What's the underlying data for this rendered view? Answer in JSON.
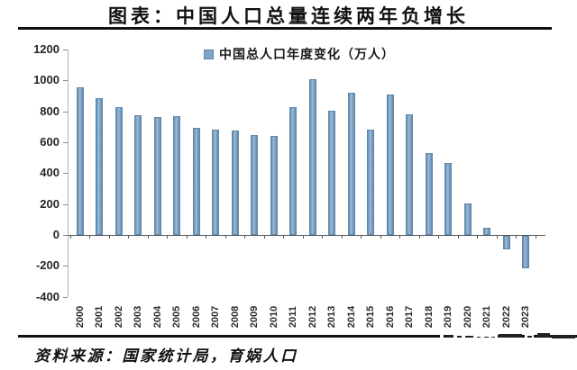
{
  "title": "图表：中国人口总量连续两年负增长",
  "legend": {
    "label": "中国总人口年度变化（万人）"
  },
  "source": "资料来源：国家统计局，育娲人口",
  "colors": {
    "bar_fill": "#7EA4C6",
    "bar_edge": "#5D87AC",
    "axis_line": "#AEB4BA",
    "zero_line": "#595959",
    "label_text": "#262626"
  },
  "chart_data": {
    "type": "bar",
    "title": "中国总人口年度变化（万人）",
    "categories": [
      "2000",
      "2001",
      "2002",
      "2003",
      "2004",
      "2005",
      "2006",
      "2007",
      "2008",
      "2009",
      "2010",
      "2011",
      "2012",
      "2013",
      "2014",
      "2015",
      "2016",
      "2017",
      "2018",
      "2019",
      "2020",
      "2021",
      "2022",
      "2023"
    ],
    "values": [
      957,
      884,
      826,
      774,
      761,
      768,
      692,
      681,
      673,
      648,
      641,
      825,
      1006,
      804,
      920,
      680,
      906,
      779,
      530,
      467,
      204,
      48,
      -85,
      -208
    ],
    "xlabel": "",
    "ylabel": "",
    "ylim": [
      -400,
      1200
    ],
    "yticks": [
      1200,
      1000,
      800,
      600,
      400,
      200,
      0,
      -200,
      -400
    ],
    "grid": false,
    "legend_position": "top-center"
  }
}
